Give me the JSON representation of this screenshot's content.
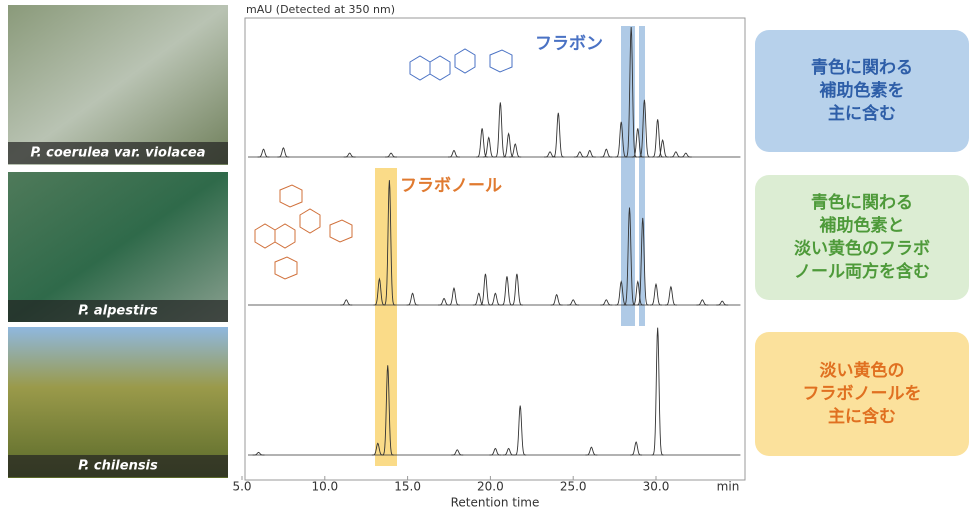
{
  "chart_data": {
    "type": "chromatogram",
    "y_label": "mAU (Detected at 350 nm)",
    "x_label": "Retention time",
    "x_unit": "min",
    "xlim": [
      5,
      35.4
    ],
    "xticks": [
      {
        "value": 5,
        "label": "5.0"
      },
      {
        "value": 10,
        "label": "10.0"
      },
      {
        "value": 15,
        "label": "15.0"
      },
      {
        "value": 20,
        "label": "20.0"
      },
      {
        "value": 25,
        "label": "25.0"
      },
      {
        "value": 30,
        "label": "30.0"
      }
    ],
    "ylim": [
      0,
      100
    ],
    "series": [
      {
        "name": "P. coerulea var. violacea",
        "color": "#333333",
        "x": [
          6.3,
          7.5,
          11.5,
          14,
          17.8,
          19.5,
          19.9,
          20.6,
          21.1,
          21.5,
          23.6,
          24.1,
          25.4,
          26,
          27,
          27.9,
          28.5,
          28.9,
          29.3,
          30.1,
          30.4,
          31.2,
          31.8
        ],
        "values": [
          6,
          7,
          3,
          3,
          5,
          22,
          15,
          42,
          18,
          10,
          4,
          34,
          4,
          5,
          6,
          27,
          100,
          22,
          44,
          29,
          13,
          4,
          3
        ]
      },
      {
        "name": "P. alpestirs",
        "color": "#333333",
        "x": [
          11.3,
          13.3,
          13.9,
          15.3,
          17.2,
          17.8,
          19.3,
          19.7,
          20.3,
          21,
          21.6,
          24,
          25,
          27,
          27.9,
          28.4,
          28.9,
          29.2,
          30,
          30.9,
          32.8,
          34
        ],
        "values": [
          4,
          20,
          96,
          9,
          5,
          13,
          9,
          24,
          9,
          22,
          24,
          8,
          4,
          4,
          18,
          75,
          18,
          67,
          16,
          14,
          4,
          3
        ]
      },
      {
        "name": "P. chilensis",
        "color": "#333333",
        "x": [
          6,
          13.2,
          13.8,
          18,
          20.3,
          21.1,
          21.8,
          26.1,
          28.8,
          30.1
        ],
        "values": [
          2,
          9,
          69,
          4,
          5,
          5,
          38,
          6,
          10,
          98
        ]
      }
    ],
    "annotations": [
      {
        "text": "フラボン",
        "color": "#4a72c4"
      },
      {
        "text": "フラボノール",
        "color": "#e07a30"
      }
    ]
  },
  "notes": [
    {
      "lines": [
        "青色に関わる",
        "補助色素を",
        "主に含む"
      ],
      "color": "#2e5ea8",
      "background": "#b7d1eb"
    },
    {
      "lines": [
        "青色に関わる",
        "補助色素と",
        "淡い黄色のフラボ",
        "ノール両方を含む"
      ],
      "color": "#4e9a3a",
      "background": "#dcedd3"
    },
    {
      "lines": [
        "淡い黄色の",
        "フラボノールを",
        "主に含む"
      ],
      "color": "#e07020",
      "background": "#fbe19c"
    }
  ]
}
